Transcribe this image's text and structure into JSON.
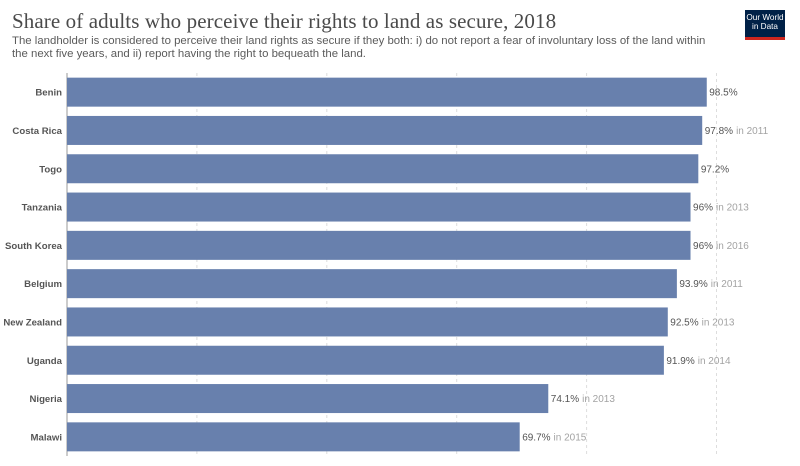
{
  "header": {
    "title": "Share of adults who perceive their rights to land as secure, 2018",
    "subtitle": "The landholder is considered to perceive their land rights as secure if they both: i) do not report a fear of involuntary loss of the land within the next five years, and ii) report having the right to bequeath the land."
  },
  "logo": {
    "line1": "Our World",
    "line2": "in Data"
  },
  "colors": {
    "bar": "#6880ad",
    "grid": "#dddddd",
    "axis": "#999999",
    "label": "#555555",
    "year": "#a3a3a3",
    "logo_bg": "#002147",
    "logo_accent": "#ce261e"
  },
  "chart_data": {
    "type": "bar",
    "orientation": "horizontal",
    "title": "Share of adults who perceive their rights to land as secure, 2018",
    "xlim": [
      0,
      100
    ],
    "grid": true,
    "categories": [
      "Benin",
      "Costa Rica",
      "Togo",
      "Tanzania",
      "South Korea",
      "Belgium",
      "New Zealand",
      "Uganda",
      "Nigeria",
      "Malawi"
    ],
    "values": [
      98.5,
      97.8,
      97.2,
      96,
      96,
      93.9,
      92.5,
      91.9,
      74.1,
      69.7
    ],
    "value_labels": [
      "98.5%",
      "97.8%",
      "97.2%",
      "96%",
      "96%",
      "93.9%",
      "92.5%",
      "91.9%",
      "74.1%",
      "69.7%"
    ],
    "year_notes": [
      "",
      "in 2011",
      "",
      "in 2013",
      "in 2016",
      "in 2011",
      "in 2013",
      "in 2014",
      "in 2013",
      "in 2015"
    ]
  }
}
